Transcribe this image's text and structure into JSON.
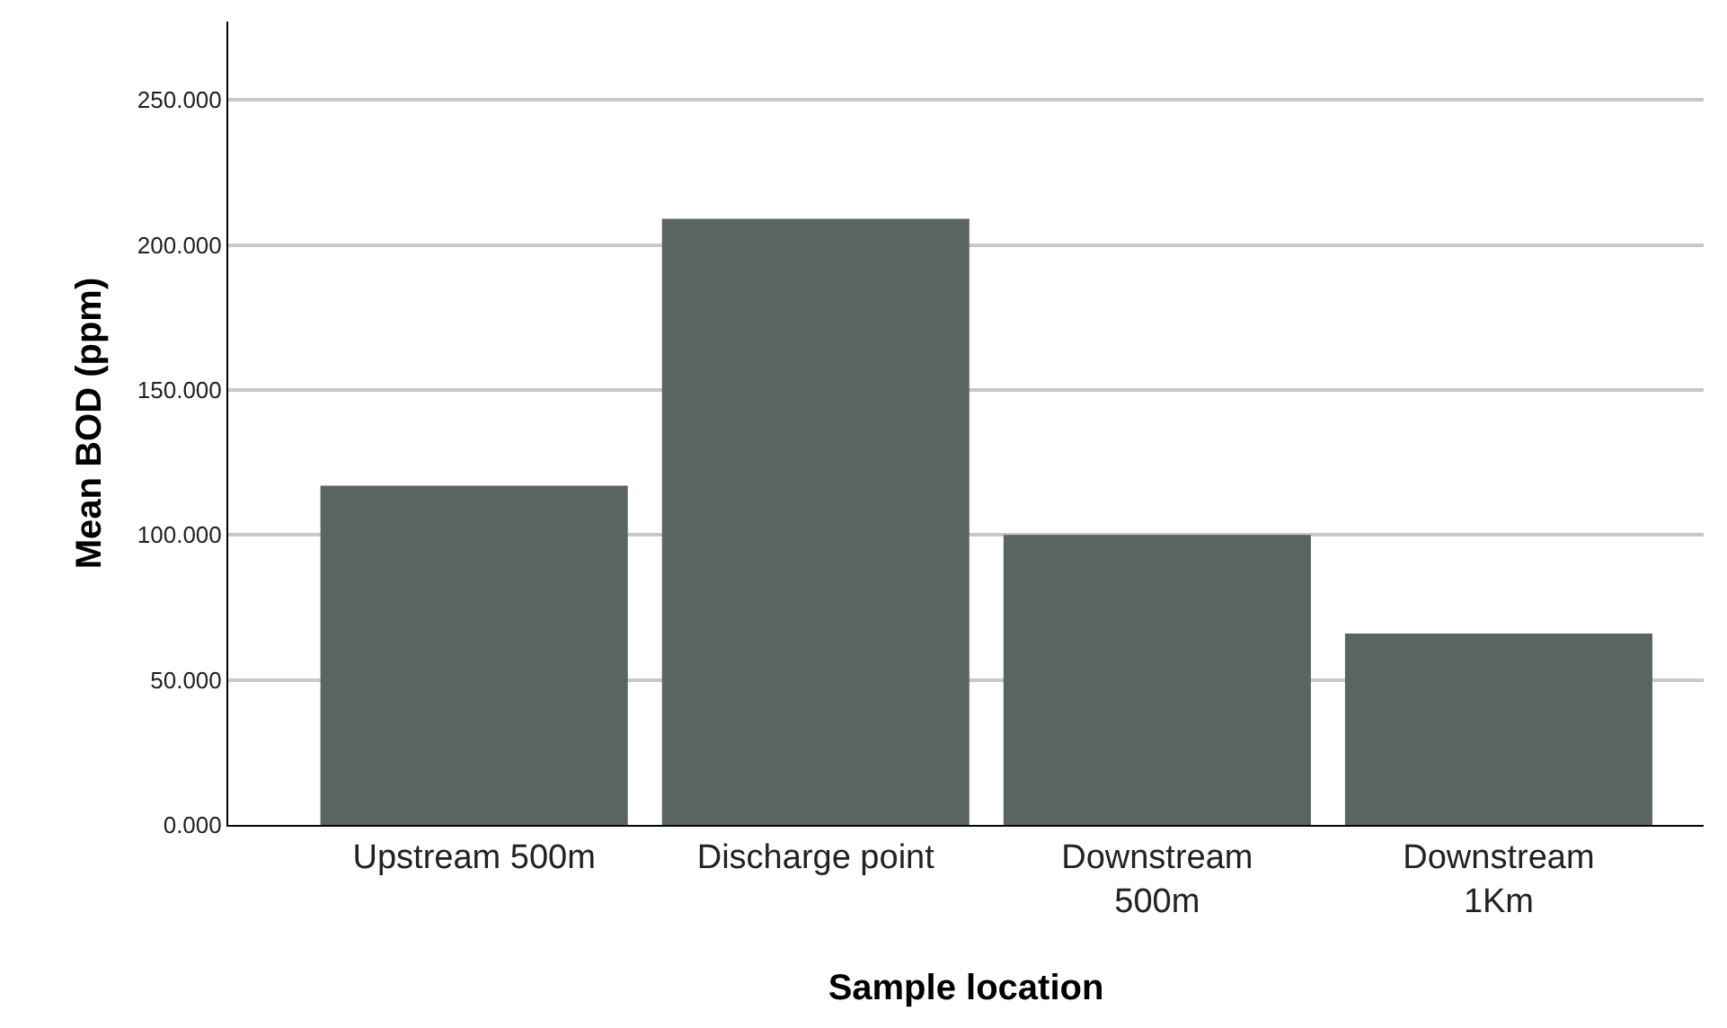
{
  "chart_data": {
    "type": "bar",
    "xlabel": "Sample location",
    "ylabel": "Mean BOD (ppm)",
    "categories": [
      "Upstream 500m",
      "Discharge point",
      "Downstream 500m",
      "Downstream 1Km"
    ],
    "values": [
      117,
      209,
      100,
      66
    ],
    "color": "#5b6560",
    "ylim": [
      0,
      277
    ],
    "yticks": [
      {
        "value": 0,
        "label": "0.000"
      },
      {
        "value": 50,
        "label": "50.000"
      },
      {
        "value": 100,
        "label": "100.000"
      },
      {
        "value": 150,
        "label": "150.000"
      },
      {
        "value": 200,
        "label": "200.000"
      },
      {
        "value": 250,
        "label": "250.000"
      }
    ],
    "grid": "y"
  }
}
